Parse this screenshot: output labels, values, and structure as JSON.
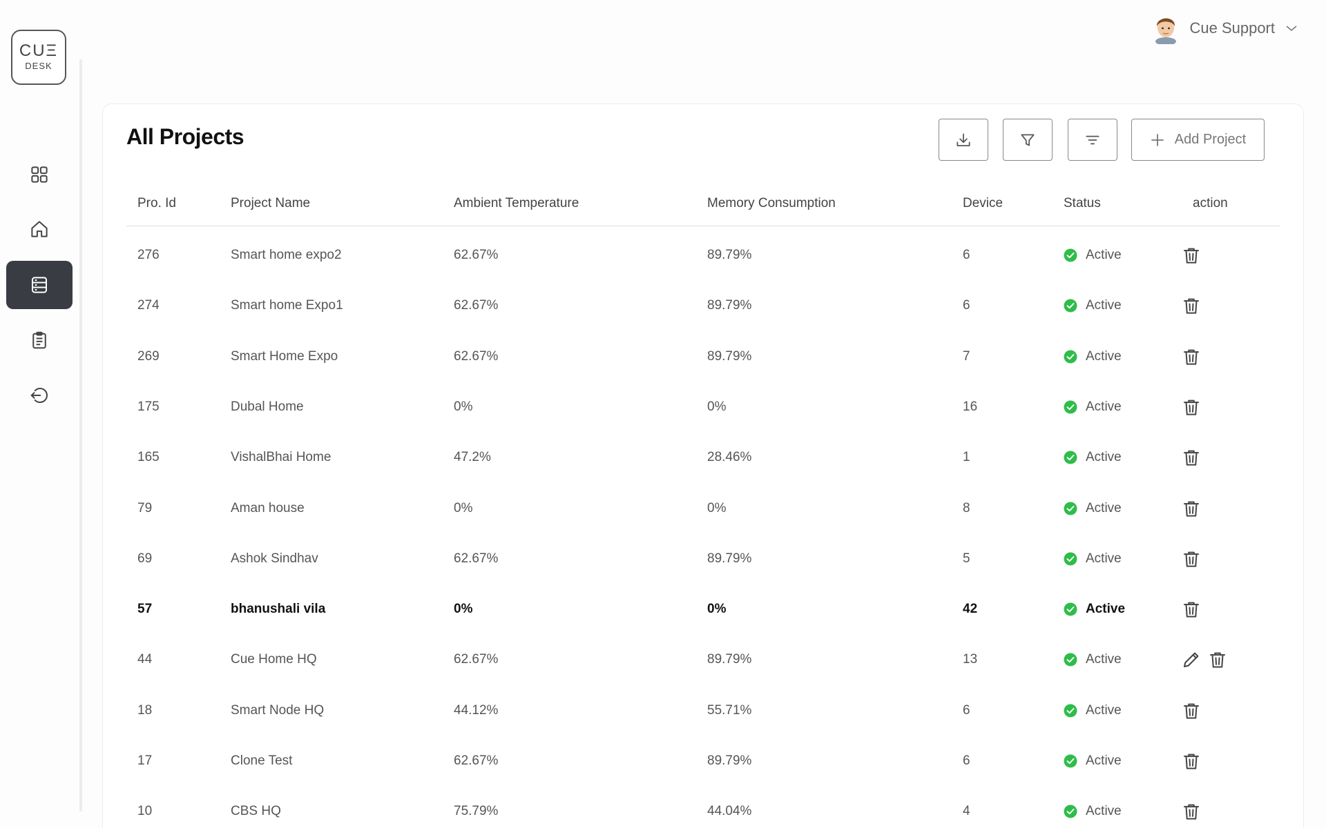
{
  "app": {
    "logo_top": "CUΞ",
    "logo_bottom": "DESK"
  },
  "user": {
    "name": "Cue Support"
  },
  "page": {
    "title": "All Projects",
    "add_label": "Add Project"
  },
  "columns": {
    "id": "Pro. Id",
    "name": "Project Name",
    "temp": "Ambient Temperature",
    "memory": "Memory Consumption",
    "device": "Device",
    "status": "Status",
    "action": "action"
  },
  "colors": {
    "accent_dark": "#3a3c43",
    "status_green": "#2ebd4a"
  },
  "rows": [
    {
      "id": "276",
      "name": "Smart home expo2",
      "temp": "62.67%",
      "memory": "89.79%",
      "device": "6",
      "status": "Active"
    },
    {
      "id": "274",
      "name": "Smart home Expo1",
      "temp": "62.67%",
      "memory": "89.79%",
      "device": "6",
      "status": "Active"
    },
    {
      "id": "269",
      "name": "Smart Home Expo",
      "temp": "62.67%",
      "memory": "89.79%",
      "device": "7",
      "status": "Active"
    },
    {
      "id": "175",
      "name": "Dubal Home",
      "temp": "0%",
      "memory": "0%",
      "device": "16",
      "status": "Active"
    },
    {
      "id": "165",
      "name": "VishalBhai Home",
      "temp": "47.2%",
      "memory": "28.46%",
      "device": "1",
      "status": "Active"
    },
    {
      "id": "79",
      "name": "Aman house",
      "temp": "0%",
      "memory": "0%",
      "device": "8",
      "status": "Active"
    },
    {
      "id": "69",
      "name": "Ashok Sindhav",
      "temp": "62.67%",
      "memory": "89.79%",
      "device": "5",
      "status": "Active"
    },
    {
      "id": "57",
      "name": "bhanushali vila",
      "temp": "0%",
      "memory": "0%",
      "device": "42",
      "status": "Active"
    },
    {
      "id": "44",
      "name": "Cue Home HQ",
      "temp": "62.67%",
      "memory": "89.79%",
      "device": "13",
      "status": "Active"
    },
    {
      "id": "18",
      "name": "Smart Node HQ",
      "temp": "44.12%",
      "memory": "55.71%",
      "device": "6",
      "status": "Active"
    },
    {
      "id": "17",
      "name": "Clone Test",
      "temp": "62.67%",
      "memory": "89.79%",
      "device": "6",
      "status": "Active"
    },
    {
      "id": "10",
      "name": "CBS HQ",
      "temp": "75.79%",
      "memory": "44.04%",
      "device": "4",
      "status": "Active"
    }
  ]
}
